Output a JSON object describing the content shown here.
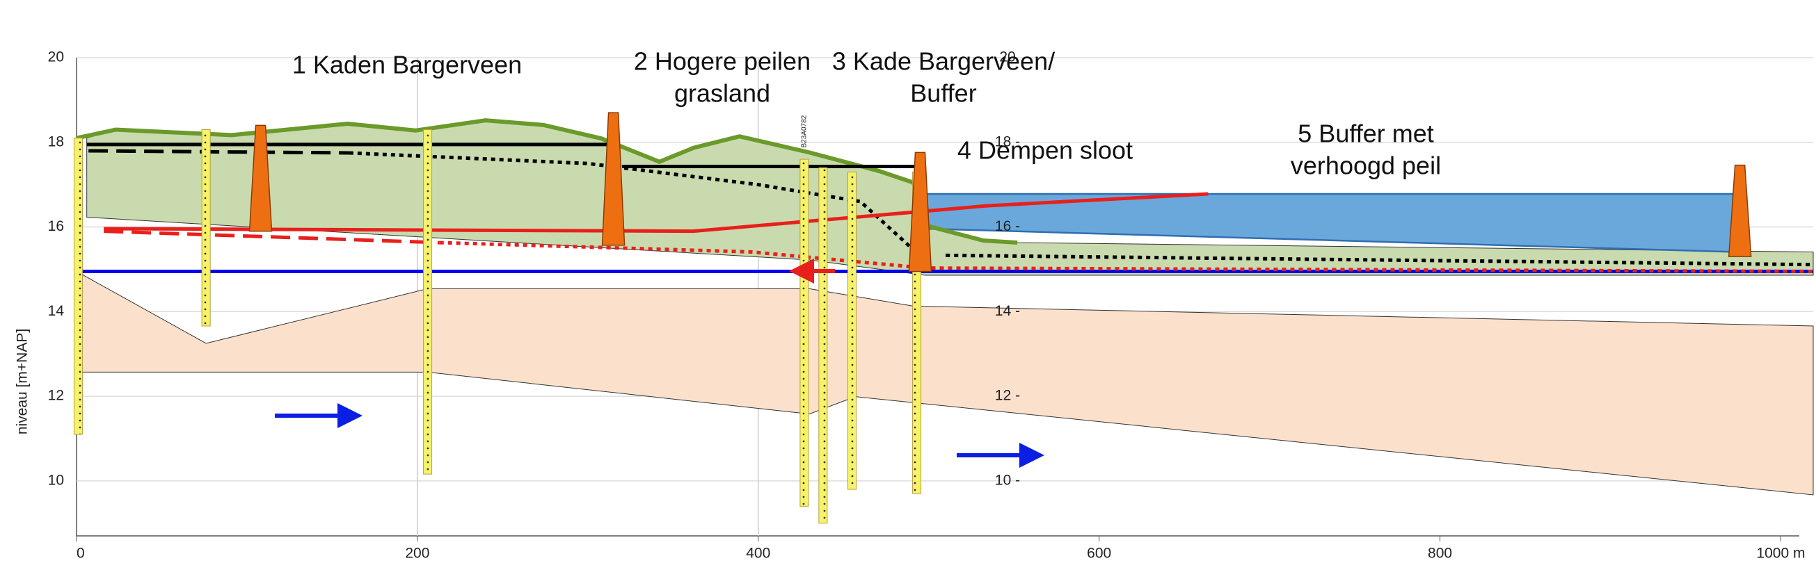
{
  "chart_data": {
    "type": "cross-section",
    "y_label": "niveau [m+NAP]",
    "xlim": [
      0,
      1019
    ],
    "ylim": [
      8.7,
      20
    ],
    "xticks": [
      0,
      200,
      400,
      600,
      800,
      {
        "value": 1000,
        "label": "1000 m"
      }
    ],
    "yticks": [
      10,
      12,
      14,
      16,
      18,
      20
    ],
    "y2lim": [
      8.7,
      20
    ],
    "y2ticks": [
      {
        "value": 10,
        "label": "10 -"
      },
      {
        "value": 12,
        "label": "12 -"
      },
      {
        "value": 14,
        "label": "14 -"
      },
      {
        "value": 16,
        "label": "16 -"
      },
      {
        "value": 18,
        "label": "18 -"
      },
      20
    ],
    "grid": true,
    "annotations": [
      [
        "1 Kaden Bargerveen"
      ],
      [
        "2 Hogere peilen",
        "grasland"
      ],
      [
        "3 Kade Bargerveen/",
        "Buffer"
      ],
      [
        "4 Dempen sloot"
      ],
      [
        "5 Buffer met",
        "verhoogd peil"
      ]
    ],
    "borehole_label": "B23A0782",
    "areas": [
      {
        "color": "#fbe0cb",
        "x_top": [
          0,
          76,
          206,
          430,
          491,
          1019
        ],
        "top": [
          14.95,
          13.25,
          14.54,
          14.54,
          14.13,
          13.66
        ],
        "x_bottom": [
          1019,
          457,
          430,
          206,
          0
        ],
        "bottom": [
          9.67,
          11.99,
          11.58,
          12.57,
          12.57
        ]
      },
      {
        "color": "#c9dbae",
        "x_top": [
          6,
          23,
          91,
          159,
          199,
          240,
          274,
          308,
          342,
          362,
          389,
          430,
          471,
          491,
          498,
          532,
          552,
          1019
        ],
        "top": [
          18.1,
          18.3,
          18.17,
          18.44,
          18.28,
          18.52,
          18.41,
          18.09,
          17.54,
          17.87,
          18.14,
          17.76,
          17.32,
          17.05,
          16.04,
          15.68,
          15.63,
          15.41
        ],
        "x_bottom": [
          1019,
          498,
          430,
          6
        ],
        "bottom": [
          14.86,
          14.86,
          15.22,
          16.23
        ]
      },
      {
        "color": "#6aa8dc",
        "x_top": [
          498,
          973
        ],
        "top": [
          16.78,
          16.78
        ],
        "x_bottom": [
          973,
          498
        ],
        "bottom": [
          15.41,
          15.96
        ]
      }
    ],
    "series": [
      {
        "color": "#6a9a2a",
        "style": "solid",
        "x": [
          0,
          23,
          91,
          159,
          199,
          240,
          274,
          308,
          342,
          362,
          389,
          430,
          471,
          491,
          498,
          532,
          552
        ],
        "values": [
          18.1,
          18.3,
          18.17,
          18.44,
          18.28,
          18.52,
          18.41,
          18.09,
          17.54,
          17.87,
          18.14,
          17.76,
          17.32,
          17.05,
          16.04,
          15.68,
          15.63
        ]
      },
      {
        "color": "#0000ee",
        "style": "solid",
        "x": [
          0,
          1019
        ],
        "values": [
          14.95,
          14.95
        ]
      },
      {
        "color": "#000000",
        "style": "solid",
        "x": [
          6,
          313,
          316,
          320,
          495
        ],
        "values": [
          17.95,
          17.95,
          null,
          17.43,
          17.43
        ]
      },
      {
        "color": "#000000",
        "style": "dashed",
        "x": [
          7,
          160
        ],
        "values": [
          17.8,
          17.75
        ]
      },
      {
        "color": "#000000",
        "style": "dotted",
        "x": [
          160,
          300,
          400,
          460,
          490,
          498,
          510,
          1019
        ],
        "values": [
          17.75,
          17.5,
          17.0,
          16.6,
          15.5,
          null,
          15.33,
          15.11
        ]
      },
      {
        "color": "#e8201c",
        "style": "solid",
        "x": [
          16,
          362,
          534,
          664
        ],
        "values": [
          15.96,
          15.9,
          16.5,
          16.78
        ]
      },
      {
        "color": "#e8201c",
        "style": "dashed",
        "x": [
          16,
          213
        ],
        "values": [
          15.9,
          15.63
        ]
      },
      {
        "color": "#e8201c",
        "style": "dotted",
        "x": [
          213,
          396,
          498,
          1019
        ],
        "values": [
          15.63,
          15.41,
          15.03,
          14.95
        ]
      }
    ],
    "structures": [
      {
        "x": 108,
        "top": 18.4,
        "bottom": 15.9
      },
      {
        "x": 315,
        "top": 18.7,
        "bottom": 15.57
      },
      {
        "x": 495,
        "top": 17.76,
        "bottom": 14.95
      },
      {
        "x": 976,
        "top": 17.46,
        "bottom": 15.3
      }
    ],
    "boreholes": [
      {
        "x": 1,
        "top": 18.1,
        "bottom": 11.1
      },
      {
        "x": 76,
        "top": 18.3,
        "bottom": 13.66
      },
      {
        "x": 206,
        "top": 18.3,
        "bottom": 10.16
      },
      {
        "x": 427,
        "top": 17.6,
        "bottom": 9.4
      },
      {
        "x": 438,
        "top": 17.4,
        "bottom": 9.0
      },
      {
        "x": 455,
        "top": 17.3,
        "bottom": 9.8
      },
      {
        "x": 493,
        "top": 17.3,
        "bottom": 9.7
      }
    ]
  }
}
